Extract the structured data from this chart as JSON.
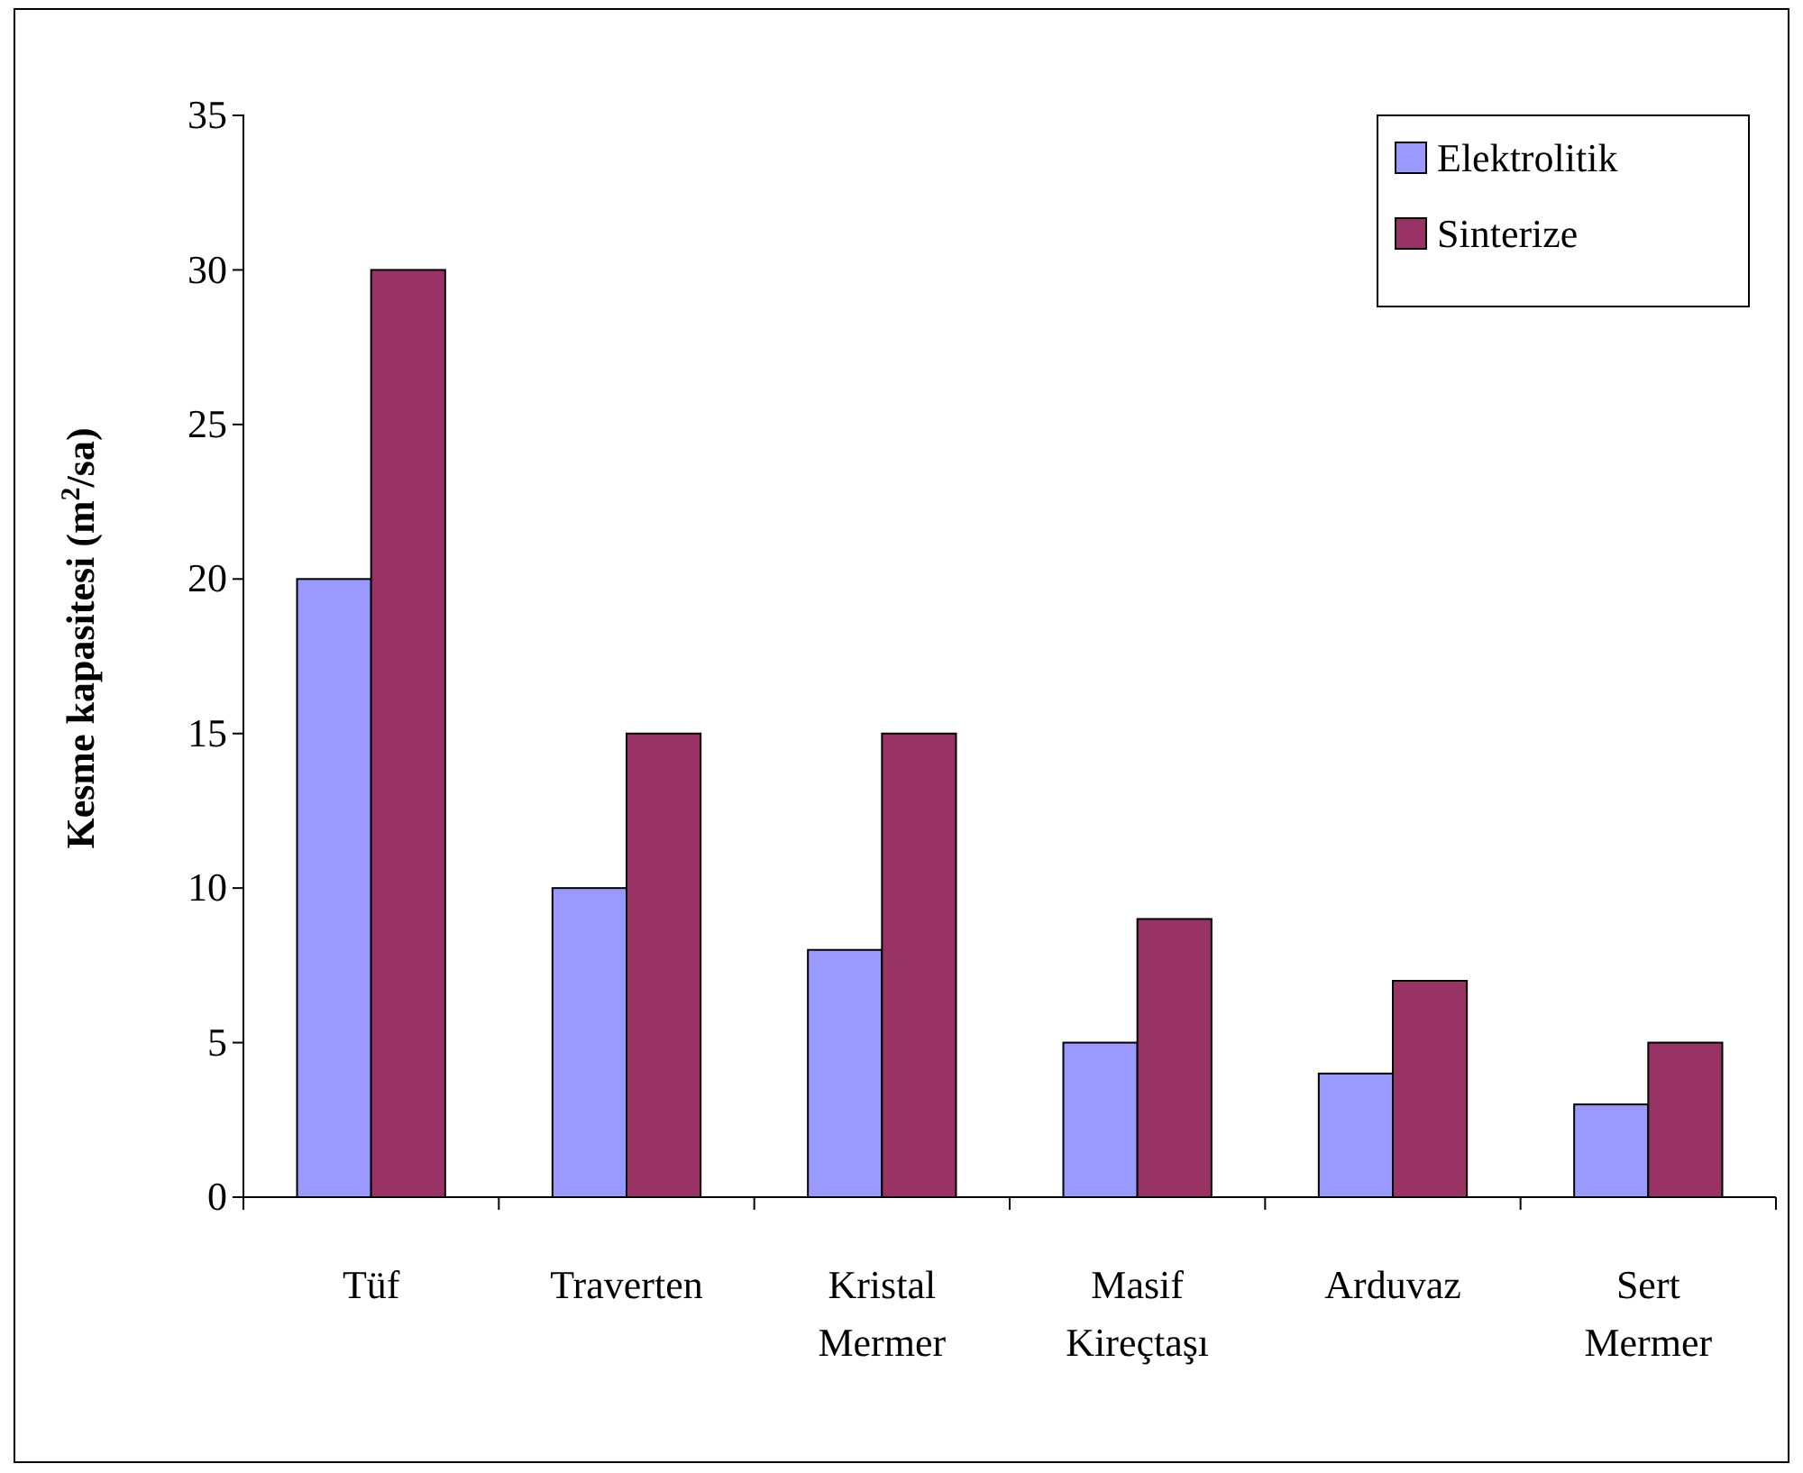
{
  "chart_data": {
    "type": "bar",
    "ylabel": "Kesme kapasitesi (m$^{2}$/sa)",
    "categories": [
      "Tüf",
      "Traverten",
      "Kristal Mermer",
      "Masif Kireçtaşı",
      "Arduvaz",
      "Sert Mermer"
    ],
    "series": [
      {
        "name": "Elektrolitik",
        "color": "#9999ff",
        "values": [
          20,
          10,
          8,
          5,
          4,
          3
        ]
      },
      {
        "name": "Sinterize",
        "color": "#993366",
        "values": [
          30,
          15,
          15,
          9,
          7,
          5
        ]
      }
    ],
    "ylim": [
      0,
      35
    ],
    "yticks": [
      0,
      5,
      10,
      15,
      20,
      25,
      30,
      35
    ],
    "grid": false,
    "legend": "top right"
  }
}
